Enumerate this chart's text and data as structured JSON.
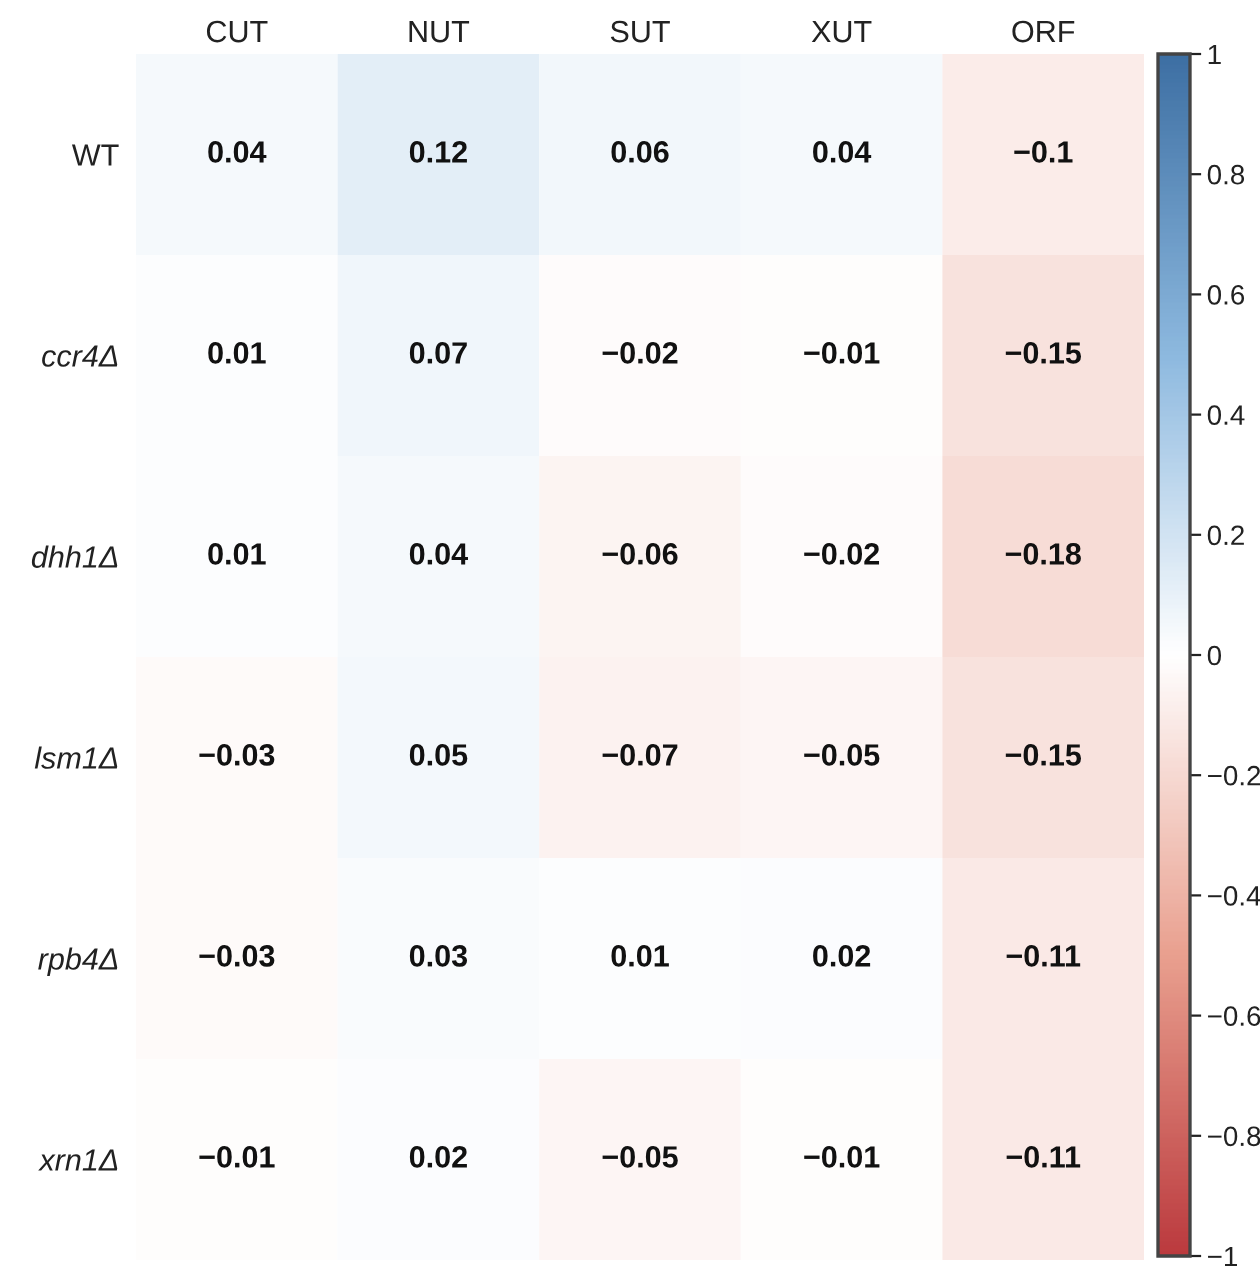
{
  "chart_data": {
    "type": "heatmap",
    "categories": [
      "CUT",
      "NUT",
      "SUT",
      "XUT",
      "ORF"
    ],
    "y_categories": [
      "WT",
      "ccr4Δ",
      "dhh1Δ",
      "lsm1Δ",
      "rpb4Δ",
      "xrn1Δ"
    ],
    "cells": [
      [
        0.04,
        0.12,
        0.06,
        0.04,
        -0.1
      ],
      [
        0.01,
        0.07,
        -0.02,
        -0.01,
        -0.15
      ],
      [
        0.01,
        0.04,
        -0.06,
        -0.02,
        -0.18
      ],
      [
        -0.03,
        0.05,
        -0.07,
        -0.05,
        -0.15
      ],
      [
        -0.03,
        0.03,
        0.01,
        0.02,
        -0.11
      ],
      [
        -0.01,
        0.02,
        -0.05,
        -0.01,
        -0.11
      ]
    ],
    "cell_labels": [
      [
        "0.04",
        "0.12",
        "0.06",
        "0.04",
        "−0.1"
      ],
      [
        "0.01",
        "0.07",
        "−0.02",
        "−0.01",
        "−0.15"
      ],
      [
        "0.01",
        "0.04",
        "−0.06",
        "−0.02",
        "−0.18"
      ],
      [
        "−0.03",
        "0.05",
        "−0.07",
        "−0.05",
        "−0.15"
      ],
      [
        "−0.03",
        "0.03",
        "0.01",
        "0.02",
        "−0.11"
      ],
      [
        "−0.01",
        "0.02",
        "−0.05",
        "−0.01",
        "−0.11"
      ]
    ],
    "data_labels": true,
    "clim": [
      -1,
      1
    ],
    "cticks": [
      {
        "value": -1,
        "label": "−1"
      },
      {
        "value": -0.8,
        "label": "−0.8"
      },
      {
        "value": -0.6,
        "label": "−0.6"
      },
      {
        "value": -0.4,
        "label": "−0.4"
      },
      {
        "value": -0.2,
        "label": "−0.2"
      },
      0,
      0.2,
      0.4,
      0.6,
      0.8,
      1
    ]
  }
}
